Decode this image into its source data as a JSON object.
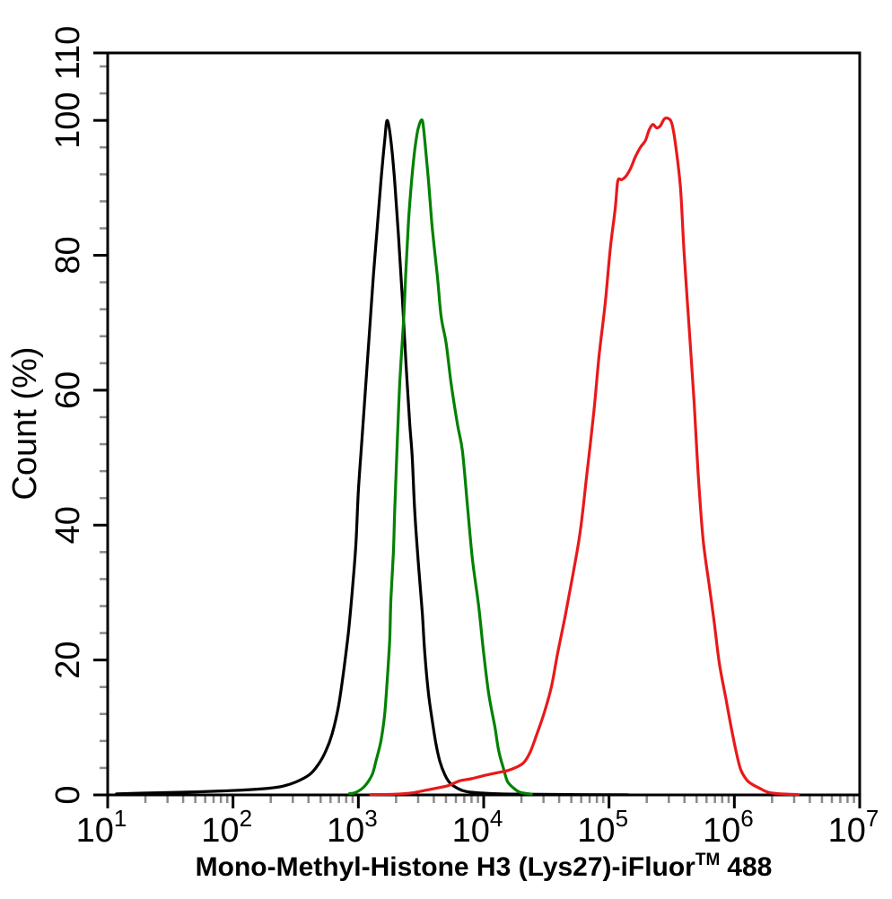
{
  "figure": {
    "background": "#ffffff",
    "ylabel": "Count (%)",
    "xlabel_prefix": "Mono-Methyl-Histone H3 (Lys27)-iFluor",
    "xlabel_sup": "TM",
    "xlabel_suffix": "488"
  },
  "chart_data": {
    "type": "line",
    "title": "",
    "xlabel": "Mono-Methyl-Histone H3 (Lys27)-iFluor™ 488",
    "ylabel": "Count (%)",
    "x_scale": "log10",
    "xlim_log10": [
      1,
      7
    ],
    "ylim": [
      0,
      110
    ],
    "grid": false,
    "legend": "none",
    "axis_color": "#000000",
    "minor_tick_color": "#8a8a8a",
    "x_ticks": [
      {
        "base": "10",
        "exp": "1"
      },
      {
        "base": "10",
        "exp": "2"
      },
      {
        "base": "10",
        "exp": "3"
      },
      {
        "base": "10",
        "exp": "4"
      },
      {
        "base": "10",
        "exp": "5"
      },
      {
        "base": "10",
        "exp": "6"
      },
      {
        "base": "10",
        "exp": "7"
      }
    ],
    "x_minor_subs": [
      2,
      3,
      4,
      5,
      6,
      7,
      8,
      9
    ],
    "y_ticks": [
      0,
      20,
      40,
      60,
      80,
      100,
      110
    ],
    "y_minor_step": 4,
    "series": [
      {
        "name": "black-curve",
        "color": "#000000",
        "peak_x_approx": 1700,
        "peak_y_pct": 100,
        "points": [
          [
            1.07,
            0.15
          ],
          [
            1.36,
            0.3
          ],
          [
            1.71,
            0.45
          ],
          [
            1.93,
            0.6
          ],
          [
            2.15,
            0.8
          ],
          [
            2.29,
            1.0
          ],
          [
            2.4,
            1.3
          ],
          [
            2.5,
            1.9
          ],
          [
            2.61,
            3.0
          ],
          [
            2.68,
            4.5
          ],
          [
            2.74,
            6.5
          ],
          [
            2.79,
            9
          ],
          [
            2.84,
            13
          ],
          [
            2.88,
            18
          ],
          [
            2.92,
            24
          ],
          [
            2.95,
            30
          ],
          [
            2.98,
            37
          ],
          [
            3.0,
            45
          ],
          [
            3.03,
            53
          ],
          [
            3.06,
            61
          ],
          [
            3.09,
            69
          ],
          [
            3.12,
            77
          ],
          [
            3.15,
            84
          ],
          [
            3.18,
            91
          ],
          [
            3.21,
            97
          ],
          [
            3.23,
            100
          ],
          [
            3.26,
            97
          ],
          [
            3.29,
            91
          ],
          [
            3.32,
            83
          ],
          [
            3.35,
            74
          ],
          [
            3.38,
            64
          ],
          [
            3.41,
            55
          ],
          [
            3.43,
            50
          ],
          [
            3.45,
            42
          ],
          [
            3.48,
            34
          ],
          [
            3.51,
            27
          ],
          [
            3.53,
            21
          ],
          [
            3.56,
            15
          ],
          [
            3.59,
            11
          ],
          [
            3.62,
            7.5
          ],
          [
            3.65,
            5
          ],
          [
            3.69,
            3
          ],
          [
            3.73,
            1.8
          ],
          [
            3.79,
            1.0
          ],
          [
            3.86,
            0.5
          ],
          [
            4.01,
            0.25
          ],
          [
            4.22,
            0.12
          ],
          [
            4.58,
            0.06
          ],
          [
            5.15,
            0.02
          ]
        ]
      },
      {
        "name": "green-curve",
        "color": "#028102",
        "peak_x_approx": 3200,
        "peak_y_pct": 100,
        "points": [
          [
            2.93,
            0.2
          ],
          [
            2.97,
            0.3
          ],
          [
            3.02,
            0.8
          ],
          [
            3.06,
            1.5
          ],
          [
            3.11,
            3
          ],
          [
            3.14,
            5
          ],
          [
            3.18,
            8
          ],
          [
            3.21,
            12
          ],
          [
            3.23,
            17
          ],
          [
            3.25,
            23
          ],
          [
            3.26,
            29
          ],
          [
            3.28,
            36
          ],
          [
            3.29,
            42
          ],
          [
            3.31,
            52
          ],
          [
            3.33,
            61
          ],
          [
            3.36,
            70
          ],
          [
            3.38,
            78
          ],
          [
            3.4,
            85
          ],
          [
            3.42,
            90
          ],
          [
            3.44,
            94
          ],
          [
            3.46,
            97
          ],
          [
            3.48,
            99
          ],
          [
            3.51,
            100
          ],
          [
            3.53,
            97
          ],
          [
            3.56,
            91
          ],
          [
            3.59,
            84
          ],
          [
            3.63,
            77
          ],
          [
            3.66,
            71
          ],
          [
            3.7,
            67
          ],
          [
            3.74,
            61
          ],
          [
            3.79,
            55
          ],
          [
            3.83,
            51
          ],
          [
            3.87,
            43
          ],
          [
            3.91,
            35
          ],
          [
            3.96,
            28
          ],
          [
            4.0,
            21
          ],
          [
            4.04,
            15
          ],
          [
            4.09,
            10
          ],
          [
            4.12,
            6.5
          ],
          [
            4.16,
            3.8
          ],
          [
            4.19,
            2
          ],
          [
            4.24,
            1
          ],
          [
            4.29,
            0.4
          ],
          [
            4.38,
            0.1
          ]
        ]
      },
      {
        "name": "red-curve",
        "color": "#e8191b",
        "peak_x_approx": 290000,
        "peak_y_pct": 100,
        "points": [
          [
            3.1,
            0.05
          ],
          [
            3.29,
            0.1
          ],
          [
            3.43,
            0.3
          ],
          [
            3.54,
            0.7
          ],
          [
            3.65,
            1.1
          ],
          [
            3.72,
            1.4
          ],
          [
            3.81,
            2.1
          ],
          [
            3.9,
            2.4
          ],
          [
            4.01,
            2.9
          ],
          [
            4.11,
            3.3
          ],
          [
            4.19,
            3.6
          ],
          [
            4.26,
            4.1
          ],
          [
            4.32,
            4.8
          ],
          [
            4.37,
            6.3
          ],
          [
            4.42,
            8.8
          ],
          [
            4.48,
            12
          ],
          [
            4.54,
            16
          ],
          [
            4.59,
            21
          ],
          [
            4.65,
            26.5
          ],
          [
            4.71,
            32.5
          ],
          [
            4.77,
            39
          ],
          [
            4.82,
            47
          ],
          [
            4.88,
            57
          ],
          [
            4.92,
            65
          ],
          [
            4.97,
            73
          ],
          [
            5.01,
            81
          ],
          [
            5.05,
            87
          ],
          [
            5.07,
            91
          ],
          [
            5.1,
            91.2
          ],
          [
            5.13,
            91.6
          ],
          [
            5.17,
            92.8
          ],
          [
            5.21,
            94.6
          ],
          [
            5.25,
            96
          ],
          [
            5.29,
            97
          ],
          [
            5.32,
            98.6
          ],
          [
            5.35,
            99.4
          ],
          [
            5.38,
            98.9
          ],
          [
            5.41,
            99.2
          ],
          [
            5.44,
            100.2
          ],
          [
            5.47,
            100.3
          ],
          [
            5.5,
            99.6
          ],
          [
            5.53,
            96.5
          ],
          [
            5.57,
            90
          ],
          [
            5.6,
            80
          ],
          [
            5.64,
            69
          ],
          [
            5.68,
            58
          ],
          [
            5.71,
            48
          ],
          [
            5.75,
            38
          ],
          [
            5.8,
            31
          ],
          [
            5.84,
            25.5
          ],
          [
            5.88,
            19.5
          ],
          [
            5.93,
            14.5
          ],
          [
            5.97,
            10.5
          ],
          [
            6.01,
            6.8
          ],
          [
            6.05,
            3.8
          ],
          [
            6.1,
            2.2
          ],
          [
            6.14,
            1.6
          ],
          [
            6.2,
            1.0
          ],
          [
            6.27,
            0.4
          ],
          [
            6.37,
            0.15
          ],
          [
            6.51,
            0.05
          ]
        ]
      }
    ]
  }
}
